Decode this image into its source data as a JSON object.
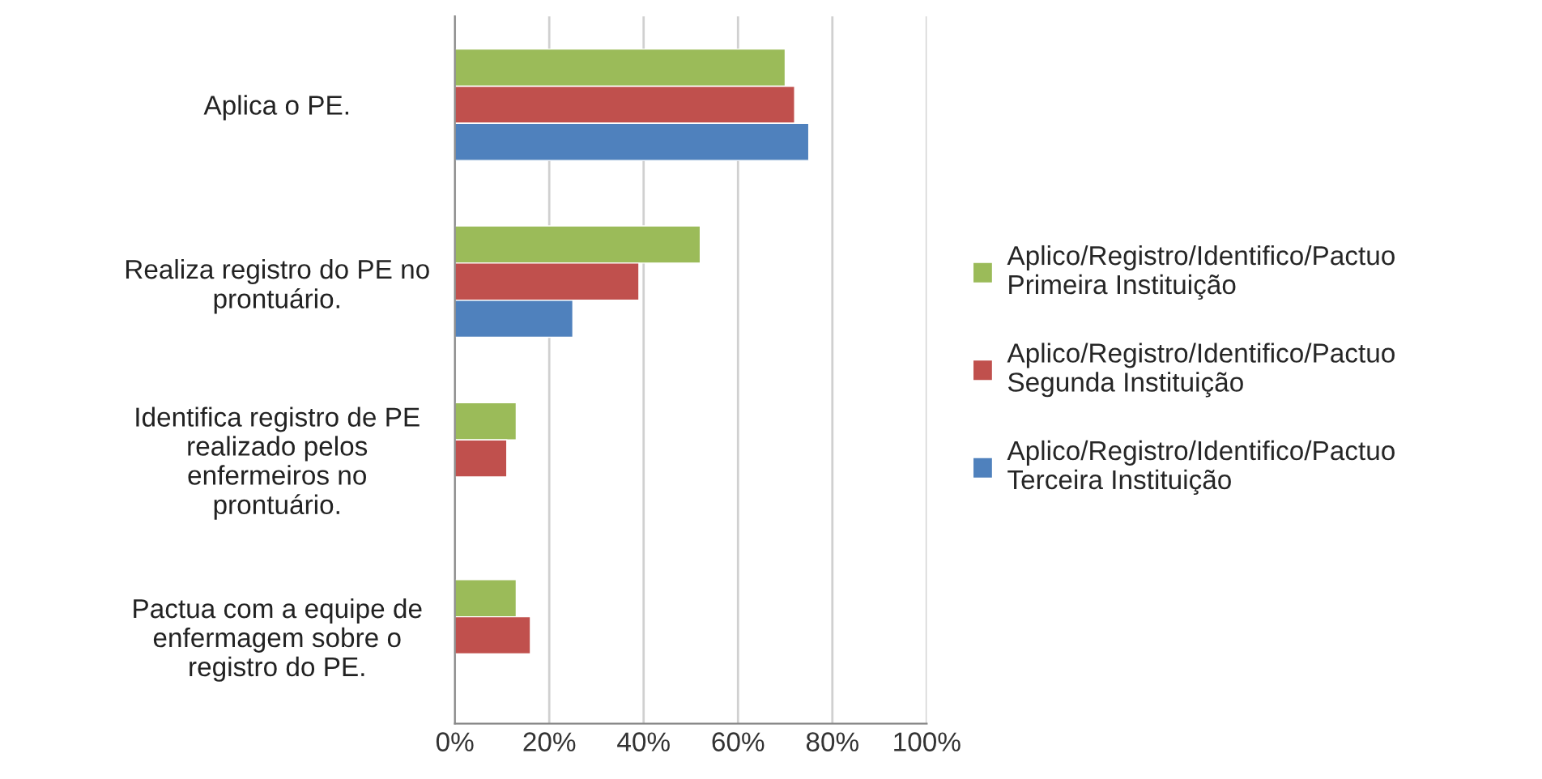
{
  "chart_data": {
    "type": "bar",
    "orientation": "horizontal",
    "categories": [
      "Aplica o PE.",
      "Realiza registro do PE no\nprontuário.",
      "Identifica registro de PE\nrealizado pelos\nenfermeiros no\nprontuário.",
      "Pactua com a equipe de\nenfermagem sobre o\nregistro do PE."
    ],
    "series": [
      {
        "name": "Aplico/Registro/Identifico/Pactuo\nPrimeira Instituição",
        "color": "#9bbb59",
        "values": [
          70,
          52,
          13,
          13
        ]
      },
      {
        "name": "Aplico/Registro/Identifico/Pactuo\nSegunda Instituição",
        "color": "#c0504d",
        "values": [
          72,
          39,
          11,
          16
        ]
      },
      {
        "name": "Aplico/Registro/Identifico/Pactuo\nTerceira Instituição",
        "color": "#4f81bd",
        "values": [
          75,
          25,
          null,
          null
        ]
      }
    ],
    "xlim": [
      0,
      100
    ],
    "xticks": [
      {
        "value": 0,
        "label": "0%"
      },
      {
        "value": 20,
        "label": "20%"
      },
      {
        "value": 40,
        "label": "40%"
      },
      {
        "value": 60,
        "label": "60%"
      },
      {
        "value": 80,
        "label": "80%"
      },
      {
        "value": 100,
        "label": "100%"
      }
    ],
    "grid": "x",
    "legend": "right"
  }
}
